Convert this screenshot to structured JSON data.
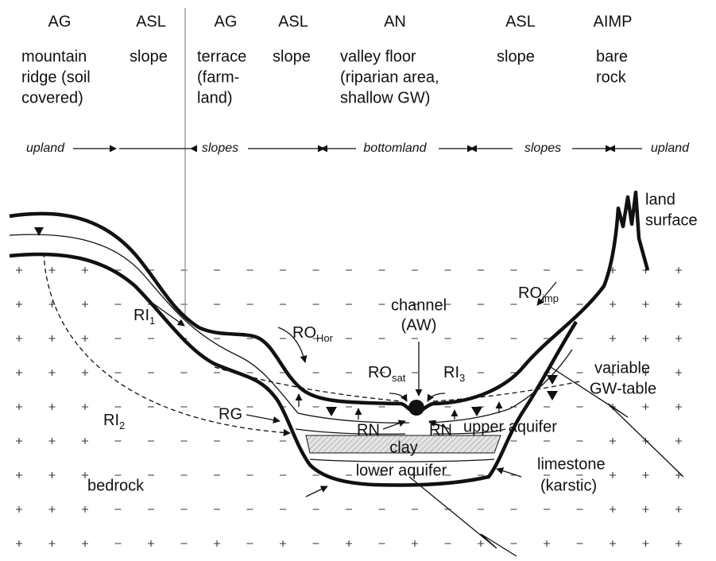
{
  "columns": [
    {
      "code": "AG",
      "desc": [
        "mountain",
        "ridge (soil",
        "covered)"
      ]
    },
    {
      "code": "ASL",
      "desc": [
        "slope"
      ]
    },
    {
      "code": "AG",
      "desc": [
        "terrace",
        "(farm-",
        "land)"
      ]
    },
    {
      "code": "ASL",
      "desc": [
        "slope"
      ]
    },
    {
      "code": "AN",
      "desc": [
        "valley floor",
        "(riparian area,",
        "shallow GW)"
      ]
    },
    {
      "code": "ASL",
      "desc": [
        "slope"
      ]
    },
    {
      "code": "AIMP",
      "desc": [
        "bare",
        "rock"
      ]
    }
  ],
  "zones": [
    "upland",
    "slopes",
    "bottomland",
    "slopes",
    "upland"
  ],
  "labels": {
    "land_surface": [
      "land",
      "surface"
    ],
    "ro_imp": {
      "main": "RO",
      "sub": "imp"
    },
    "channel": [
      "channel",
      "(AW)"
    ],
    "ro_hor": {
      "main": "RO",
      "sub": "Hor"
    },
    "ri_1": {
      "main": "RI",
      "sub": "1"
    },
    "ro_sat": {
      "main": "RO",
      "sub": "sat"
    },
    "ri_3": {
      "main": "RI",
      "sub": "3"
    },
    "gw_table": [
      "variable",
      "GW-table"
    ],
    "rg": "RG",
    "ri_2": {
      "main": "RI",
      "sub": "2"
    },
    "rn_left": "RN",
    "rn_right": "RN",
    "upper_aquifer": "upper aquifer",
    "clay": "clay",
    "lower_aquifer": "lower aquifer",
    "limestone": [
      "limestone",
      "(karstic)"
    ],
    "bedrock": "bedrock"
  }
}
